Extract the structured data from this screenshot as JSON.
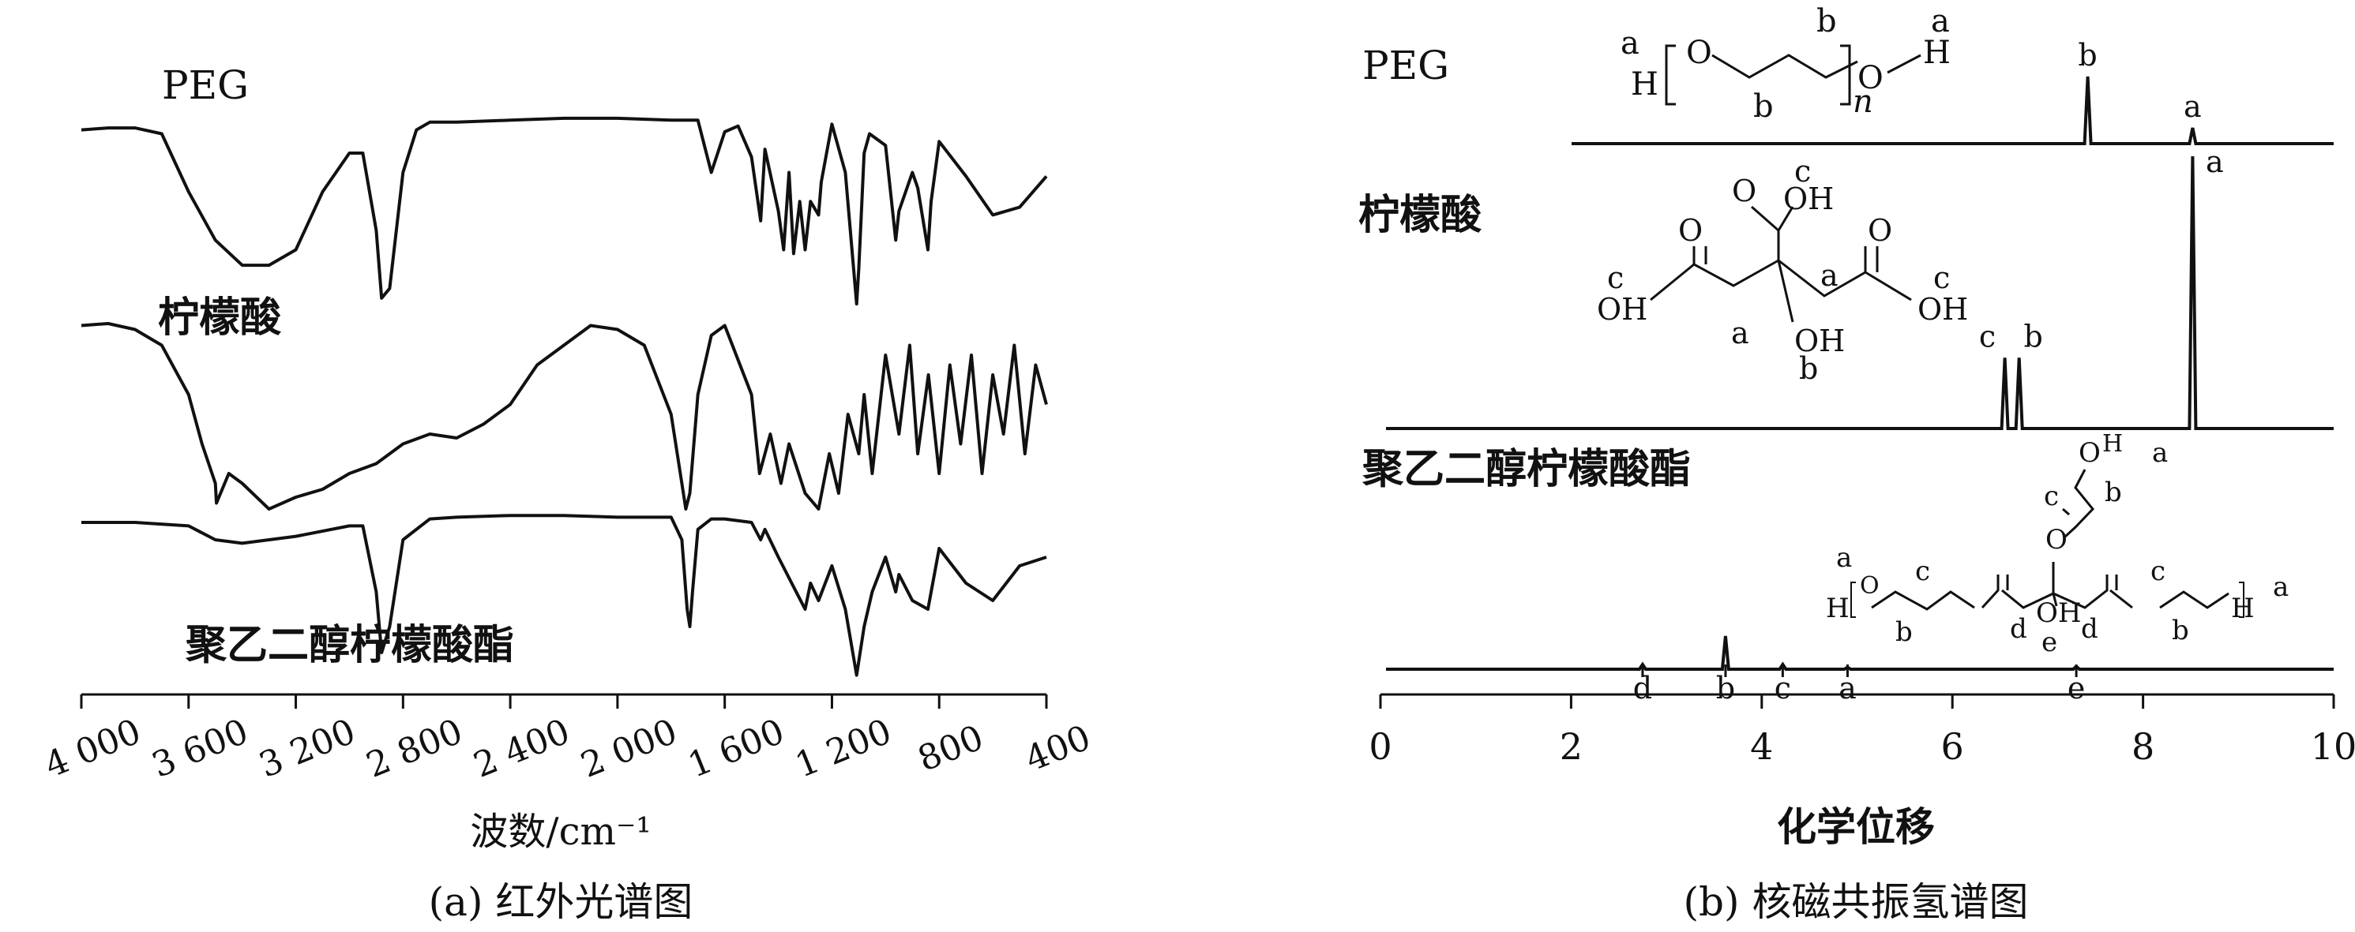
{
  "panels": {
    "ir": {
      "caption": "(a) 红外光谱图"
    },
    "nmr": {
      "caption": "(b) 核磁共振氢谱图"
    }
  },
  "chart_data": [
    {
      "type": "line",
      "xlabel": "波数/cm⁻¹",
      "ylabel": "",
      "xlim": [
        4000,
        400
      ],
      "x_ticks": [
        "4 000",
        "3 600",
        "3 200",
        "2 800",
        "2 400",
        "2 000",
        "1 600",
        "1 200",
        "800",
        "400"
      ],
      "series": [
        {
          "name": "PEG",
          "x": [
            4000,
            3900,
            3800,
            3700,
            3600,
            3500,
            3400,
            3300,
            3200,
            3100,
            3000,
            2950,
            2900,
            2880,
            2850,
            2800,
            2750,
            2700,
            2600,
            2400,
            2200,
            2000,
            1800,
            1700,
            1650,
            1600,
            1550,
            1500,
            1466,
            1450,
            1400,
            1380,
            1360,
            1343,
            1320,
            1300,
            1280,
            1250,
            1240,
            1200,
            1150,
            1108,
            1100,
            1080,
            1060,
            1000,
            962,
            950,
            900,
            880,
            842,
            830,
            800,
            700,
            600,
            500,
            400
          ],
          "y": [
            0.92,
            0.93,
            0.93,
            0.9,
            0.6,
            0.35,
            0.22,
            0.22,
            0.3,
            0.6,
            0.8,
            0.8,
            0.4,
            0.05,
            0.1,
            0.7,
            0.92,
            0.96,
            0.96,
            0.97,
            0.98,
            0.98,
            0.97,
            0.97,
            0.7,
            0.91,
            0.94,
            0.78,
            0.45,
            0.82,
            0.5,
            0.3,
            0.7,
            0.28,
            0.55,
            0.3,
            0.55,
            0.48,
            0.65,
            0.95,
            0.7,
            0.02,
            0.2,
            0.8,
            0.9,
            0.84,
            0.35,
            0.5,
            0.7,
            0.62,
            0.3,
            0.55,
            0.86,
            0.68,
            0.48,
            0.52,
            0.68
          ]
        },
        {
          "name": "柠檬酸",
          "x": [
            4000,
            3900,
            3800,
            3700,
            3600,
            3550,
            3500,
            3496,
            3450,
            3400,
            3300,
            3200,
            3100,
            3000,
            2900,
            2800,
            2700,
            2600,
            2500,
            2400,
            2300,
            2200,
            2100,
            2000,
            1900,
            1800,
            1760,
            1745,
            1730,
            1700,
            1650,
            1600,
            1580,
            1500,
            1470,
            1430,
            1390,
            1360,
            1300,
            1250,
            1210,
            1175,
            1140,
            1100,
            1080,
            1050,
            1000,
            950,
            910,
            880,
            840,
            800,
            760,
            720,
            680,
            640,
            600,
            560,
            520,
            480,
            440,
            400
          ],
          "y": [
            0.95,
            0.96,
            0.93,
            0.85,
            0.6,
            0.35,
            0.15,
            0.05,
            0.2,
            0.15,
            0.02,
            0.08,
            0.12,
            0.2,
            0.25,
            0.35,
            0.4,
            0.38,
            0.45,
            0.55,
            0.75,
            0.85,
            0.95,
            0.93,
            0.85,
            0.5,
            0.15,
            0.02,
            0.1,
            0.6,
            0.9,
            0.95,
            0.88,
            0.6,
            0.2,
            0.4,
            0.15,
            0.35,
            0.1,
            0.02,
            0.3,
            0.1,
            0.5,
            0.3,
            0.6,
            0.2,
            0.8,
            0.4,
            0.85,
            0.3,
            0.7,
            0.2,
            0.75,
            0.35,
            0.8,
            0.2,
            0.7,
            0.4,
            0.85,
            0.3,
            0.75,
            0.55
          ]
        },
        {
          "name": "聚乙二醇柠檬酸酯",
          "x": [
            4000,
            3800,
            3600,
            3500,
            3400,
            3200,
            3000,
            2950,
            2900,
            2880,
            2850,
            2800,
            2700,
            2600,
            2400,
            2200,
            2000,
            1800,
            1760,
            1740,
            1730,
            1720,
            1700,
            1650,
            1600,
            1500,
            1466,
            1450,
            1400,
            1350,
            1300,
            1280,
            1250,
            1200,
            1150,
            1108,
            1080,
            1050,
            1000,
            962,
            950,
            900,
            842,
            800,
            700,
            600,
            500,
            400
          ],
          "y": [
            0.9,
            0.9,
            0.88,
            0.8,
            0.78,
            0.82,
            0.88,
            0.88,
            0.5,
            0.15,
            0.3,
            0.8,
            0.92,
            0.93,
            0.94,
            0.94,
            0.93,
            0.93,
            0.8,
            0.4,
            0.3,
            0.5,
            0.86,
            0.92,
            0.92,
            0.9,
            0.8,
            0.86,
            0.7,
            0.55,
            0.4,
            0.55,
            0.45,
            0.65,
            0.4,
            0.02,
            0.3,
            0.5,
            0.7,
            0.5,
            0.6,
            0.45,
            0.4,
            0.75,
            0.55,
            0.45,
            0.65,
            0.7
          ]
        }
      ]
    },
    {
      "type": "line",
      "xlabel": "化学位移",
      "ylabel": "",
      "xlim": [
        0,
        10
      ],
      "x_ticks": [
        "0",
        "2",
        "4",
        "6",
        "8",
        "10"
      ],
      "series": [
        {
          "name": "PEG",
          "peaks": [
            {
              "x": 7.42,
              "height": 0.85,
              "label": "b"
            },
            {
              "x": 8.52,
              "height": 0.2,
              "label": "a"
            }
          ]
        },
        {
          "name": "柠檬酸",
          "peaks": [
            {
              "x": 6.55,
              "height": 0.26,
              "label": "c"
            },
            {
              "x": 6.7,
              "height": 0.26,
              "label": "b"
            },
            {
              "x": 8.52,
              "height": 1.0,
              "label": "a"
            }
          ]
        },
        {
          "name": "聚乙二醇柠檬酸酯",
          "peaks": [
            {
              "x": 2.75,
              "height": 0.05,
              "label": ""
            },
            {
              "x": 3.62,
              "height": 0.35,
              "label": ""
            },
            {
              "x": 4.22,
              "height": 0.05,
              "label": ""
            },
            {
              "x": 4.9,
              "height": 0.02,
              "label": ""
            },
            {
              "x": 7.3,
              "height": 0.03,
              "label": ""
            }
          ]
        }
      ],
      "axis_peak_labels": [
        {
          "x": 2.75,
          "label": "d"
        },
        {
          "x": 3.62,
          "label": "b"
        },
        {
          "x": 4.22,
          "label": "c"
        },
        {
          "x": 4.9,
          "label": "a"
        },
        {
          "x": 7.3,
          "label": "e"
        }
      ]
    }
  ],
  "structures": {
    "peg": {
      "h_left": "H",
      "o_left": "O",
      "o_right": "O",
      "h_right": "H",
      "n": "n",
      "labels": [
        "a",
        "a",
        "b",
        "b"
      ]
    },
    "citric": {
      "o": "O",
      "oh": "OH",
      "labels": [
        "c",
        "c",
        "c",
        "a",
        "a",
        "b"
      ]
    },
    "ester": {
      "h": "H",
      "o": "O",
      "oh": "OH",
      "labels": [
        "a",
        "b",
        "c",
        "a",
        "b",
        "c",
        "a",
        "b",
        "c",
        "d",
        "d",
        "e"
      ]
    }
  }
}
